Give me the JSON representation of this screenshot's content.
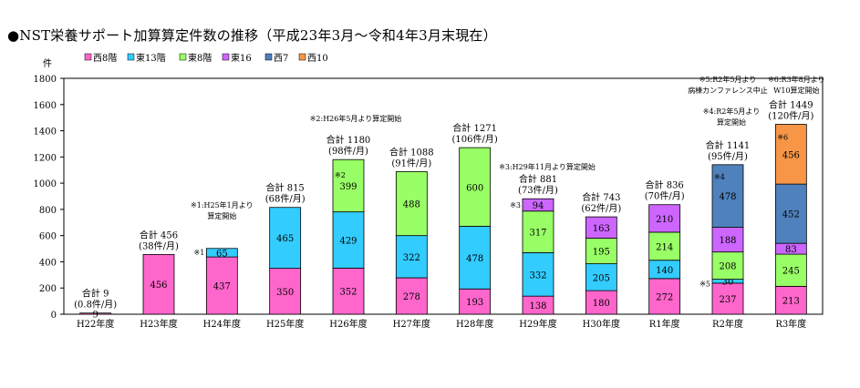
{
  "title": "●NST栄養サポート加算算定件数の推移（平成23年3月〜令和4年3月末現在）",
  "chart_data": {
    "type": "bar",
    "stacked": true,
    "y_unit_label": "件",
    "ylim": [
      0,
      1800
    ],
    "y_ticks": [
      0,
      200,
      400,
      600,
      800,
      1000,
      1200,
      1400,
      1600,
      1800
    ],
    "grid": false,
    "legend_position": "top-left",
    "categories": [
      "H22年度",
      "H23年度",
      "H24年度",
      "H25年度",
      "H26年度",
      "H27年度",
      "H28年度",
      "H29年度",
      "H30年度",
      "R1年度",
      "R2年度",
      "R3年度"
    ],
    "series": [
      {
        "name": "西8階",
        "color": "#ff66cc",
        "values": [
          9,
          456,
          437,
          350,
          352,
          278,
          193,
          138,
          180,
          272,
          237,
          213
        ]
      },
      {
        "name": "東13階",
        "color": "#33ccff",
        "values": [
          0,
          0,
          65,
          465,
          429,
          322,
          478,
          332,
          205,
          140,
          30,
          0
        ]
      },
      {
        "name": "東8階",
        "color": "#99ff66",
        "values": [
          0,
          0,
          0,
          0,
          399,
          488,
          600,
          317,
          195,
          214,
          208,
          245
        ]
      },
      {
        "name": "東16",
        "color": "#cc66ff",
        "values": [
          0,
          0,
          0,
          0,
          0,
          0,
          0,
          94,
          163,
          210,
          188,
          83
        ]
      },
      {
        "name": "西7",
        "color": "#4f81bd",
        "values": [
          0,
          0,
          0,
          0,
          0,
          0,
          0,
          0,
          0,
          0,
          478,
          452
        ]
      },
      {
        "name": "西10",
        "color": "#f79646",
        "values": [
          0,
          0,
          0,
          0,
          0,
          0,
          0,
          0,
          0,
          0,
          0,
          456
        ]
      }
    ],
    "segment_labels": [
      [
        "9"
      ],
      [
        "456"
      ],
      [
        "437",
        "65"
      ],
      [
        "350",
        "465"
      ],
      [
        "352",
        "429",
        "399"
      ],
      [
        "278",
        "322",
        "488"
      ],
      [
        "193",
        "478",
        "600"
      ],
      [
        "138",
        "332",
        "317",
        "94"
      ],
      [
        "180",
        "205",
        "195",
        "163"
      ],
      [
        "272",
        "140",
        "214",
        "210"
      ],
      [
        "237",
        "30",
        "208",
        "188",
        "478"
      ],
      [
        "213",
        "245",
        "83",
        "452",
        "456"
      ]
    ],
    "totals": [
      {
        "line1": "合計 9",
        "line2": "(0.8件/月)"
      },
      {
        "line1": "合計 456",
        "line2": "(38件/月)"
      },
      {
        "line1": "",
        "line2": ""
      },
      {
        "line1": "合計 815",
        "line2": "(68件/月)"
      },
      {
        "line1": "合計 1180",
        "line2": "(98件/月)"
      },
      {
        "line1": "合計 1088",
        "line2": "(91件/月)"
      },
      {
        "line1": "合計 1271",
        "line2": "(106件/月)"
      },
      {
        "line1": "合計 881",
        "line2": "(73件/月)"
      },
      {
        "line1": "合計 743",
        "line2": "(62件/月)"
      },
      {
        "line1": "合計 836",
        "line2": "(70件/月)"
      },
      {
        "line1": "合計 1141",
        "line2": "(95件/月)"
      },
      {
        "line1": "合計 1449",
        "line2": "(120件/月)"
      }
    ],
    "annotations": [
      {
        "text": "※1:H25年1月より",
        "line2": "算定開始"
      },
      {
        "text": "※2:H26年5月より算定開始",
        "line2": ""
      },
      {
        "text": "※3:H29年11月より算定開始",
        "line2": ""
      },
      {
        "text": "※4:R2年5月より",
        "line2": "算定開始"
      },
      {
        "text": "※5:R2年5月より",
        "line2": "病棟カンファレンス中止"
      },
      {
        "text": "※6:R3年8月より",
        "line2": "W10算定開始"
      }
    ],
    "markers": [
      "※1",
      "※2",
      "※3",
      "※4",
      "※5",
      "※6"
    ]
  }
}
